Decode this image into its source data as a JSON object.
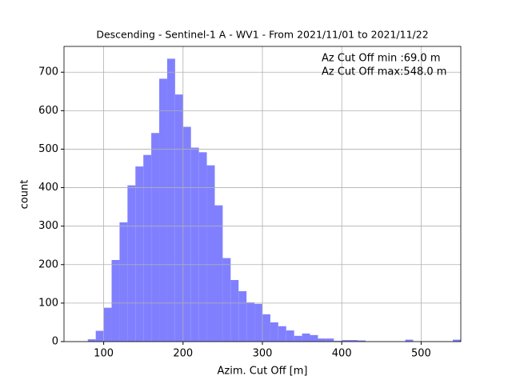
{
  "chart_data": {
    "type": "histogram",
    "title": "Descending - Sentinel-1 A - WV1 - From 2021/11/01 to 2021/11/22",
    "x_label": "Azim. Cut Off [m]",
    "y_label": "count",
    "annotations": [
      "Az Cut Off min :69.0 m",
      "Az Cut Off max:548.0 m"
    ],
    "color": "#8080ff",
    "grid": true,
    "bins": [
      80,
      90,
      100,
      110,
      120,
      130,
      140,
      150,
      160,
      170,
      180,
      190,
      200,
      210,
      220,
      230,
      240,
      250,
      260,
      270,
      280,
      290,
      300,
      310,
      320,
      330,
      340,
      350,
      360,
      370,
      380,
      390,
      400,
      410,
      420,
      430,
      440,
      450,
      460,
      470,
      480,
      490,
      500,
      510,
      520,
      530,
      540,
      550
    ],
    "values": [
      6,
      28,
      88,
      212,
      310,
      406,
      455,
      485,
      542,
      683,
      735,
      642,
      558,
      504,
      492,
      458,
      354,
      217,
      160,
      131,
      102,
      98,
      71,
      50,
      40,
      29,
      15,
      21,
      17,
      8,
      8,
      2,
      4,
      4,
      3,
      0,
      1,
      1,
      1,
      0,
      5,
      0,
      1,
      0,
      1,
      0,
      5
    ],
    "xlim": [
      50,
      550
    ],
    "ylim": [
      0,
      767
    ],
    "xticks": [
      100,
      200,
      300,
      400,
      500
    ],
    "yticks": [
      0,
      100,
      200,
      300,
      400,
      500,
      600,
      700
    ]
  }
}
